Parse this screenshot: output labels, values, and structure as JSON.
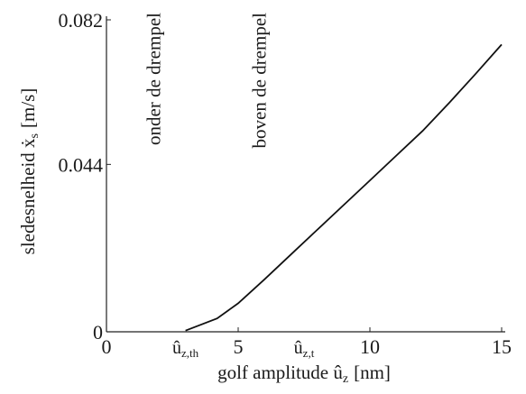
{
  "chart_data": {
    "type": "line",
    "xlabel": "golf amplitude û",
    "xlabel_sub": "z",
    "xlabel_unit": "[nm]",
    "ylabel": "sledesnelheid ẋ",
    "ylabel_sub": "s",
    "ylabel_unit": "[m/s]",
    "xlim": [
      0,
      15
    ],
    "ylim": [
      0,
      0.082
    ],
    "x_ticks": [
      {
        "value": 0,
        "label": "0"
      },
      {
        "value": 5,
        "label": "5"
      },
      {
        "value": 10,
        "label": "10"
      },
      {
        "value": 15,
        "label": "15"
      }
    ],
    "y_ticks": [
      {
        "value": 0,
        "label": "0"
      },
      {
        "value": 0.044,
        "label": "0.044"
      },
      {
        "value": 0.082,
        "label": "0.082"
      }
    ],
    "threshold_markers": [
      {
        "value": 3,
        "label": "û",
        "sub": "z,th"
      },
      {
        "value": 7.5,
        "label": "û",
        "sub": "z,t"
      }
    ],
    "region_labels": [
      {
        "text": "onder de drempel",
        "x": 1.8
      },
      {
        "text": "boven de drempel",
        "x": 5.8
      }
    ],
    "grid": false,
    "series": [
      {
        "x": [
          3.0,
          4.2,
          5.0,
          6.0,
          7.0,
          8.0,
          9.0,
          10.0,
          11.0,
          12.0,
          13.0,
          14.0,
          15.0
        ],
        "values": [
          0.0003,
          0.0035,
          0.0075,
          0.0138,
          0.0203,
          0.0268,
          0.0333,
          0.0398,
          0.0463,
          0.0528,
          0.0601,
          0.0677,
          0.0755
        ]
      }
    ]
  }
}
